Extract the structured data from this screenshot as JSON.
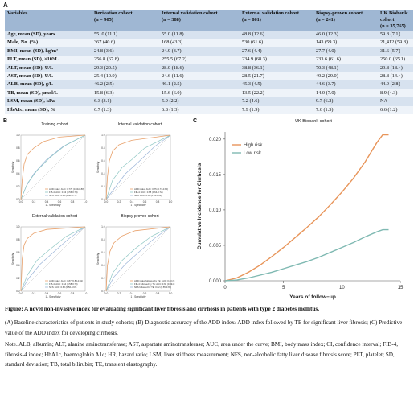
{
  "panelA": {
    "label": "A",
    "headers": [
      "Variables",
      "Derivation cohort\n(n = 905)",
      "Internal validation cohort\n(n = 388)",
      "External validation cohort\n(n = 861)",
      "Biopsy-proven cohort\n(n = 241)",
      "UK Biobank cohort\n(n = 35,765)"
    ],
    "rows": [
      [
        "Age, mean (SD), years",
        "55 .0 (11.1)",
        "55.0 (11.8)",
        "48.8 (12.6)",
        "46.0 (12.3)",
        "59.8 (7.1)"
      ],
      [
        "Male, No. (%)",
        "367 (40.6)",
        "168 (43.3)",
        "530 (61.6)",
        "143 (59.3)",
        "21,412 (59.8)"
      ],
      [
        "BMI, mean (SD), kg/m²",
        "24.8 (3.6)",
        "24.9 (3.7)",
        "27.6 (4.4)",
        "27.7 (4.0)",
        "31.6 (5.7)"
      ],
      [
        "PLT, mean (SD), ×10⁹/L",
        "256.8 (67.8)",
        "255.5 (67.2)",
        "234.9 (68.3)",
        "233.6 (61.6)",
        "250.0 (65.1)"
      ],
      [
        "ALT, mean (SD), U/L",
        "29.3 (20.5)",
        "28.0 (18.6)",
        "38.8 (36.1)",
        "70.3 (48.1)",
        "29.8 (18.4)"
      ],
      [
        "AST, mean (SD), U/L",
        "25.4 (10.9)",
        "24.6 (11.6)",
        "28.5 (21.7)",
        "49.2 (29.0)",
        "28.8 (14.4)"
      ],
      [
        "ALB, mean (SD), g/L",
        "46.2 (2.5)",
        "46.1 (2.5)",
        "45.3 (4.5)",
        "44.6 (3.7)",
        "44.9 (2.8)"
      ],
      [
        "TB, mean (SD), μmol/L",
        "15.8 (6.3)",
        "15.6 (6.0)",
        "13.5 (22.2)",
        "14.0 (7.0)",
        "8.9 (4.3)"
      ],
      [
        "LSM, mean (SD), kPa",
        "6.3 (3.1)",
        "5.9 (2.2)",
        "7.2 (4.6)",
        "9.7 (6.2)",
        "NA"
      ],
      [
        "HbA1c, mean (SD), %",
        "6.7 (1.3)",
        "6.8 (1.3)",
        "7.9 (1.9)",
        "7.6 (1.5)",
        "6.6 (1.2)"
      ]
    ]
  },
  "panelB": {
    "label": "B",
    "plots": [
      {
        "title": "Training cohort",
        "legend": [
          "ADD index: AUC: 0.770 (0.69-0.88)",
          "FIB-4: AUC: 0.63 (0.56-0.74)",
          "NFS: AUC: 0.66 (0.58-0.77)"
        ]
      },
      {
        "title": "Internal validation cohort",
        "legend": [
          "ADD index: AUC: 0.75 (0.71-0.80)",
          "FIB-4: AUC: 0.68 (0.64-0.72)",
          "NFS: AUC: 0.56 (0.51-0.61)"
        ]
      },
      {
        "title": "External validation cohort",
        "legend": [
          "ADD index: AUC: 0.87 (0.83-0.91)",
          "FIB-4: AUC: 0.64 (0.58-0.70)",
          "NFS: AUC: 0.62 (0.56-0.67)"
        ]
      },
      {
        "title": "Biopsy-proven cohort",
        "legend": [
          "ADD index followed by TE: AUC: 0.83 (0.78-0.88)",
          "FIB-4 followed by TE: AUC: 0.66 (0.59-0.73)",
          "NFS followed by TE: 0.62 (0.55-0.69)"
        ]
      }
    ],
    "xlabel": "1 - Specificity",
    "ylabel": "Sensitivity",
    "ticks": [
      "0.0",
      "0.2",
      "0.4",
      "0.6",
      "0.8",
      "1.0"
    ],
    "colors": {
      "add": "#e8a06a",
      "fib4": "#8fc7c4",
      "nfs": "#9bb4d8"
    }
  },
  "panelC": {
    "label": "C",
    "title": "UK Biobank cohort",
    "ylabel": "Cumulative Incidence for Cirrhosis",
    "xlabel": "Years of follow−up",
    "xticks": [
      "0",
      "5",
      "10",
      "15"
    ],
    "yticks": [
      "0.000",
      "0.005",
      "0.010",
      "0.015",
      "0.020"
    ],
    "legend_high": "High risk",
    "legend_low": "Low risk",
    "color_high": "#e8955a",
    "color_low": "#7fb9b2"
  },
  "chart_data": [
    {
      "type": "line",
      "title": "UK Biobank cohort",
      "xlabel": "Years of follow−up",
      "ylabel": "Cumulative Incidence for Cirrhosis",
      "xlim": [
        0,
        15
      ],
      "ylim": [
        0,
        0.021
      ],
      "grid": false,
      "legend": "top-left",
      "x": [
        0,
        1,
        2,
        3,
        4,
        5,
        6,
        7,
        8,
        9,
        10,
        11,
        12,
        13,
        13.5,
        14
      ],
      "series": [
        {
          "name": "High risk",
          "values": [
            0.0,
            0.0004,
            0.0012,
            0.0022,
            0.0034,
            0.0047,
            0.0061,
            0.0075,
            0.009,
            0.0107,
            0.0125,
            0.0145,
            0.0168,
            0.0195,
            0.0206,
            0.0206
          ]
        },
        {
          "name": "Low risk",
          "values": [
            0.0,
            0.0001,
            0.0004,
            0.0008,
            0.0012,
            0.0017,
            0.0022,
            0.0027,
            0.0033,
            0.004,
            0.0047,
            0.0054,
            0.0062,
            0.0069,
            0.0072,
            0.0072
          ]
        }
      ]
    }
  ],
  "caption": {
    "title": "Figure: A novel non-invasive index for evaluating significant liver fibrosis and cirrhosis in patients with type 2 diabetes mellitus.",
    "lineA": "(A) Baseline characteristics of patients in study cohorts; (B) Diagnostic accuracy of the ADD index/ ADD index followed by TE for significant liver fibrosis; (C) Predictive value of the ADD index for developing cirrhosis.",
    "note": "Note. ALB, albumin; ALT, alanine aminotransferase; AST, aspartate aminotransferase; AUC, area under the curve; BMI, body mass index; CI, confidence interval; FIB-4, fibrosis-4 index; HbA1c, haemoglobin A1c; HR, hazard ratio; LSM, liver stiffness measurement; NFS, non-alcoholic fatty liver disease fibrosis score; PLT, platelet; SD, standard deviation; TB, total bilirubin; TE, transient elastography."
  }
}
